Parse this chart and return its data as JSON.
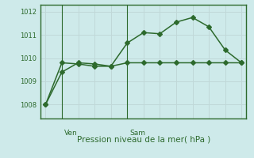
{
  "line1_x": [
    0,
    1,
    2,
    3,
    4,
    5,
    6,
    7,
    8,
    9,
    10,
    11,
    12
  ],
  "line1_y": [
    1008.0,
    1009.4,
    1009.8,
    1009.75,
    1009.65,
    1010.65,
    1011.1,
    1011.05,
    1011.55,
    1011.75,
    1011.35,
    1010.35,
    1009.8
  ],
  "line2_x": [
    0,
    1,
    2,
    3,
    4,
    5,
    6,
    7,
    8,
    9,
    10,
    11,
    12
  ],
  "line2_y": [
    1008.0,
    1009.8,
    1009.75,
    1009.65,
    1009.65,
    1009.8,
    1009.8,
    1009.8,
    1009.8,
    1009.8,
    1009.8,
    1009.8,
    1009.8
  ],
  "ven_x": 1,
  "sam_x": 5,
  "ven_label": "Ven",
  "sam_label": "Sam",
  "ylabel_ticks": [
    1008,
    1009,
    1010,
    1011,
    1012
  ],
  "ylim": [
    1007.4,
    1012.3
  ],
  "xlim": [
    -0.3,
    12.3
  ],
  "line_color": "#2d6a2d",
  "bg_color": "#ceeaea",
  "grid_color": "#c0d8d8",
  "xlabel": "Pression niveau de la mer( hPa )",
  "marker": "D",
  "marker_size": 3.0,
  "linewidth": 1.1
}
